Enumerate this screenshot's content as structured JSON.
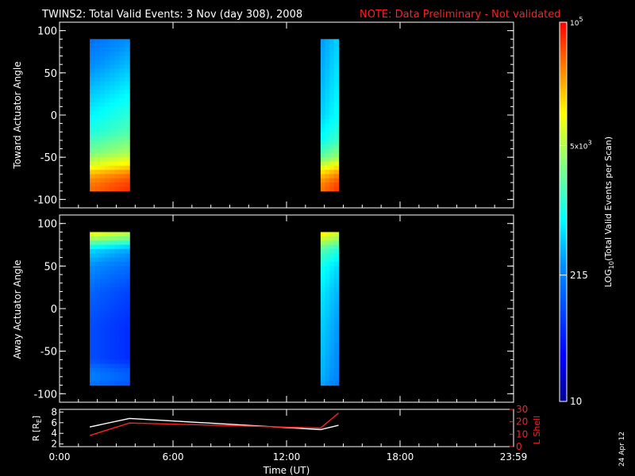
{
  "header": {
    "title": "TWINS2: Total Valid Events:  3 Nov (day 308), 2008",
    "note": "NOTE: Data Preliminary - Not validated",
    "note_color": "#ff2020"
  },
  "footer_date": "24 Apr 12",
  "chart_data": [
    {
      "type": "heatmap",
      "ylabel": "Toward Actuator Angle",
      "ylim": [
        -110,
        110
      ],
      "yticks": [
        100,
        50,
        0,
        -50,
        -100
      ],
      "xlim": [
        0,
        24
      ],
      "blocks": [
        {
          "t_start": 1.6,
          "t_end": 3.7,
          "angle_min": -90,
          "angle_max": 90,
          "profile": [
            [
              90,
              0.33
            ],
            [
              60,
              0.38
            ],
            [
              20,
              0.46
            ],
            [
              -20,
              0.54
            ],
            [
              -45,
              0.64
            ],
            [
              -60,
              0.76
            ],
            [
              -70,
              0.86
            ],
            [
              -80,
              0.91
            ],
            [
              -90,
              0.93
            ]
          ]
        },
        {
          "t_start": 13.8,
          "t_end": 14.75,
          "angle_min": -90,
          "angle_max": 90,
          "profile": [
            [
              90,
              0.4
            ],
            [
              40,
              0.43
            ],
            [
              0,
              0.46
            ],
            [
              -30,
              0.52
            ],
            [
              -50,
              0.62
            ],
            [
              -60,
              0.74
            ],
            [
              -70,
              0.84
            ],
            [
              -80,
              0.9
            ],
            [
              -90,
              0.92
            ]
          ]
        }
      ]
    },
    {
      "type": "heatmap",
      "ylabel": "Away Actuator Angle",
      "ylim": [
        -110,
        110
      ],
      "yticks": [
        100,
        50,
        0,
        -50,
        -100
      ],
      "xlim": [
        0,
        24
      ],
      "blocks": [
        {
          "t_start": 1.6,
          "t_end": 3.7,
          "angle_min": -90,
          "angle_max": 90,
          "profile": [
            [
              90,
              0.74
            ],
            [
              80,
              0.6
            ],
            [
              70,
              0.42
            ],
            [
              50,
              0.33
            ],
            [
              20,
              0.26
            ],
            [
              -20,
              0.22
            ],
            [
              -60,
              0.22
            ],
            [
              -70,
              0.28
            ],
            [
              -80,
              0.31
            ],
            [
              -90,
              0.28
            ]
          ]
        },
        {
          "t_start": 13.8,
          "t_end": 14.75,
          "angle_min": -90,
          "angle_max": 90,
          "profile": [
            [
              90,
              0.76
            ],
            [
              80,
              0.66
            ],
            [
              70,
              0.55
            ],
            [
              50,
              0.47
            ],
            [
              20,
              0.43
            ],
            [
              -20,
              0.4
            ],
            [
              -60,
              0.38
            ],
            [
              -80,
              0.37
            ],
            [
              -90,
              0.35
            ]
          ]
        }
      ]
    },
    {
      "type": "line",
      "ylabel": "R [R",
      "ylabel_sub": "E",
      "ylabel_end": "]",
      "ylim": [
        1.5,
        8.5
      ],
      "yticks": [
        2,
        4,
        6,
        8
      ],
      "y2label": "L Shell",
      "y2lim": [
        0,
        30
      ],
      "y2ticks": [
        0,
        10,
        20,
        30
      ],
      "xlabel": "Time (UT)",
      "xlim": [
        0,
        24
      ],
      "xtick_values": [
        0,
        6,
        12,
        18,
        24
      ],
      "xtick_labels": [
        "0:00",
        "6:00",
        "12:00",
        "18:00",
        "23:59"
      ],
      "series": [
        {
          "axis": "left",
          "color": "#ffffff",
          "x": [
            1.6,
            3.7,
            13.8,
            14.75
          ],
          "y": [
            5.2,
            6.8,
            4.7,
            5.5
          ]
        },
        {
          "axis": "right",
          "color": "#ff2020",
          "x": [
            1.6,
            3.7,
            13.8,
            14.75
          ],
          "y": [
            9,
            19,
            15,
            27
          ]
        }
      ]
    }
  ],
  "colorbar": {
    "label_main": "LOG",
    "label_sub": "10",
    "label_rest": "(Total Valid  Events per Scan)",
    "scale": "log",
    "range": [
      10,
      100000
    ],
    "ticks": [
      {
        "value": 100000,
        "text": "10",
        "sup": "5"
      },
      {
        "value": 5000,
        "text": "5x10",
        "sup": "3"
      },
      {
        "value": 215,
        "text": "215",
        "sup": ""
      },
      {
        "value": 10,
        "text": "10",
        "sup": ""
      }
    ]
  }
}
